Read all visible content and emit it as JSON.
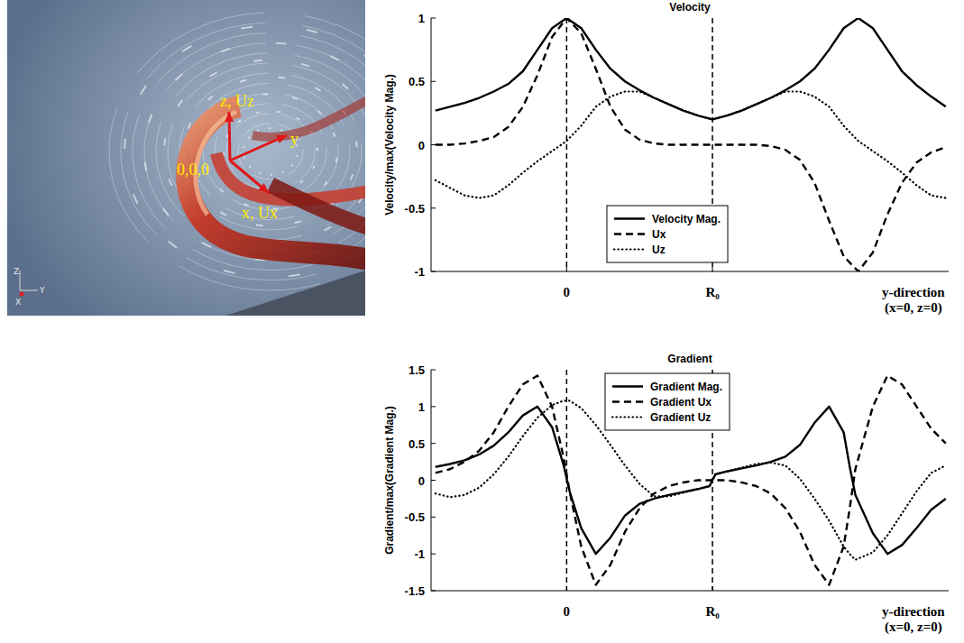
{
  "image_panel": {
    "origin_label": "0,0,0",
    "x_label": "x, Ux",
    "y_label": "y",
    "z_label": "z, Uz",
    "orientation_axes": [
      "X",
      "Y",
      "Z"
    ]
  },
  "chart_data": [
    {
      "type": "line",
      "title": "Velocity",
      "xlabel": "y-direction (x=0, z=0)",
      "ylabel": "Velocity/max(Velocity Mag.)",
      "x": [
        -0.9,
        -0.8,
        -0.7,
        -0.6,
        -0.5,
        -0.4,
        -0.3,
        -0.2,
        -0.1,
        0,
        0.1,
        0.2,
        0.3,
        0.4,
        0.5,
        0.6,
        0.7,
        0.8,
        0.9,
        1.0,
        1.1,
        1.2,
        1.3,
        1.4,
        1.5,
        1.6,
        1.7,
        1.8,
        1.9,
        2.0,
        2.1,
        2.2,
        2.3,
        2.4,
        2.5,
        2.6
      ],
      "xlim": [
        -0.93,
        2.62
      ],
      "xticks": [
        0,
        {
          "value": 1,
          "label": "R₀"
        }
      ],
      "ylim": [
        -1,
        1
      ],
      "yticks": [
        -1,
        -0.5,
        0,
        0.5,
        1
      ],
      "grid": true,
      "legend": "lower center",
      "series": [
        {
          "name": "Velocity Mag.",
          "color": "#000000",
          "line_style": "solid",
          "values": [
            0.27,
            0.3,
            0.33,
            0.37,
            0.42,
            0.48,
            0.58,
            0.75,
            0.92,
            1.0,
            0.92,
            0.75,
            0.6,
            0.5,
            0.43,
            0.37,
            0.32,
            0.27,
            0.23,
            0.2,
            0.23,
            0.27,
            0.32,
            0.37,
            0.43,
            0.5,
            0.6,
            0.75,
            0.92,
            1.0,
            0.92,
            0.75,
            0.58,
            0.47,
            0.38,
            0.3
          ]
        },
        {
          "name": "Ux",
          "color": "#000000",
          "line_style": "dashed",
          "values": [
            0,
            0,
            0.01,
            0.03,
            0.06,
            0.14,
            0.3,
            0.55,
            0.85,
            1.0,
            0.88,
            0.6,
            0.3,
            0.12,
            0.04,
            0.01,
            0,
            0,
            0,
            0,
            0,
            0,
            0,
            -0.01,
            -0.04,
            -0.12,
            -0.3,
            -0.6,
            -0.88,
            -1.0,
            -0.85,
            -0.55,
            -0.3,
            -0.14,
            -0.06,
            -0.02
          ]
        },
        {
          "name": "Uz",
          "color": "#000000",
          "line_style": "dotted",
          "values": [
            -0.28,
            -0.34,
            -0.4,
            -0.42,
            -0.4,
            -0.32,
            -0.22,
            -0.13,
            -0.05,
            0.03,
            0.15,
            0.3,
            0.38,
            0.42,
            0.42,
            0.37,
            0.32,
            0.27,
            0.23,
            0.2,
            0.23,
            0.27,
            0.32,
            0.37,
            0.42,
            0.42,
            0.38,
            0.3,
            0.15,
            0.03,
            -0.05,
            -0.13,
            -0.22,
            -0.32,
            -0.4,
            -0.42
          ]
        }
      ]
    },
    {
      "type": "line",
      "title": "Gradient",
      "xlabel": "y-direction (x=0, z=0)",
      "ylabel": "Gradient/max(Gradient Mag.)",
      "x": [
        -0.9,
        -0.8,
        -0.7,
        -0.6,
        -0.5,
        -0.4,
        -0.3,
        -0.2,
        -0.1,
        -0.02,
        0.02,
        0.1,
        0.2,
        0.3,
        0.4,
        0.5,
        0.6,
        0.7,
        0.8,
        0.9,
        0.98,
        1.02,
        1.1,
        1.2,
        1.3,
        1.4,
        1.5,
        1.6,
        1.7,
        1.8,
        1.9,
        1.94,
        1.98,
        2.1,
        2.2,
        2.3,
        2.4,
        2.5,
        2.6
      ],
      "xlim": [
        -0.93,
        2.62
      ],
      "xticks": [
        0,
        {
          "value": 1,
          "label": "R₀"
        }
      ],
      "ylim": [
        -1.5,
        1.5
      ],
      "yticks": [
        -1.5,
        -1,
        -0.5,
        0,
        0.5,
        1,
        1.5
      ],
      "grid": true,
      "legend": "upper center",
      "series": [
        {
          "name": "Gradient Mag.",
          "color": "#000000",
          "line_style": "solid",
          "values": [
            0.18,
            0.22,
            0.27,
            0.35,
            0.47,
            0.65,
            0.88,
            1.0,
            0.72,
            0.2,
            -0.15,
            -0.65,
            -1.0,
            -0.78,
            -0.48,
            -0.32,
            -0.25,
            -0.2,
            -0.16,
            -0.12,
            -0.08,
            0.08,
            0.12,
            0.16,
            0.2,
            0.25,
            0.32,
            0.48,
            0.78,
            1.0,
            0.65,
            0.2,
            -0.2,
            -0.72,
            -1.0,
            -0.88,
            -0.65,
            -0.4,
            -0.25
          ]
        },
        {
          "name": "Gradient Ux",
          "color": "#000000",
          "line_style": "dashed",
          "values": [
            0.1,
            0.15,
            0.25,
            0.4,
            0.65,
            1.0,
            1.3,
            1.42,
            1.0,
            0.3,
            -0.15,
            -0.9,
            -1.42,
            -1.15,
            -0.7,
            -0.38,
            -0.18,
            -0.08,
            -0.03,
            0,
            0,
            0,
            0,
            -0.03,
            -0.08,
            -0.18,
            -0.38,
            -0.7,
            -1.15,
            -1.42,
            -0.9,
            -0.4,
            0.15,
            1.0,
            1.42,
            1.3,
            1.0,
            0.7,
            0.5
          ]
        },
        {
          "name": "Gradient Uz",
          "color": "#000000",
          "line_style": "dotted",
          "values": [
            -0.18,
            -0.23,
            -0.2,
            -0.1,
            0.08,
            0.32,
            0.6,
            0.85,
            1.02,
            1.08,
            1.08,
            0.98,
            0.75,
            0.48,
            0.2,
            -0.05,
            -0.22,
            -0.22,
            -0.17,
            -0.12,
            -0.08,
            0.08,
            0.12,
            0.17,
            0.22,
            0.24,
            0.2,
            0.02,
            -0.25,
            -0.55,
            -0.9,
            -1.0,
            -1.08,
            -0.98,
            -0.75,
            -0.45,
            -0.15,
            0.1,
            0.2
          ]
        }
      ]
    }
  ]
}
